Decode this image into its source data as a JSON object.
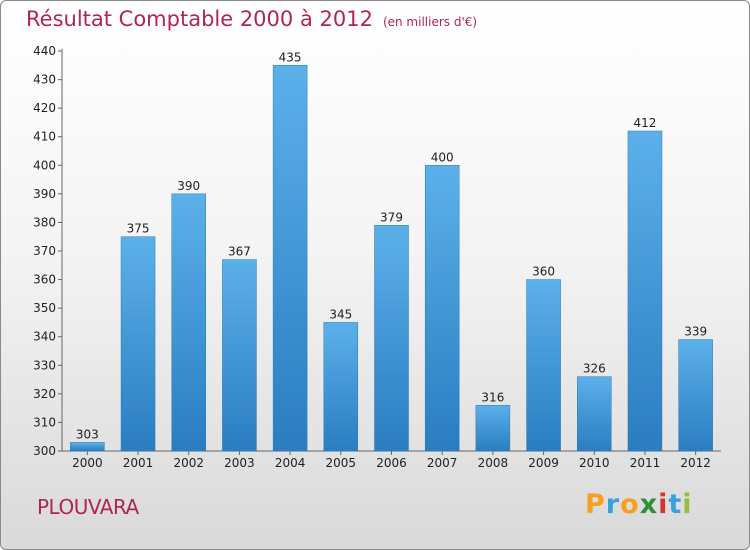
{
  "title": "Résultat Comptable 2000 à 2012",
  "subtitle": "(en milliers d'€)",
  "commune": "PLOUVARA",
  "brand": {
    "letters": [
      "P",
      "r",
      "o",
      "x",
      "i",
      "t",
      "i"
    ],
    "colors": [
      "#f7a01e",
      "#3aa0dc",
      "#f7a01e",
      "#2f8f3a",
      "#d9342b",
      "#3aa0dc",
      "#8fc13f"
    ]
  },
  "colors": {
    "bar": "#3d95d5",
    "bar_light": "#5eb2ea",
    "title": "#b0245a"
  },
  "chart_data": {
    "type": "bar",
    "categories": [
      "2000",
      "2001",
      "2002",
      "2003",
      "2004",
      "2005",
      "2006",
      "2007",
      "2008",
      "2009",
      "2010",
      "2011",
      "2012"
    ],
    "values": [
      303,
      375,
      390,
      367,
      435,
      345,
      379,
      400,
      316,
      360,
      326,
      412,
      339
    ],
    "ylim": [
      300,
      440
    ],
    "yticks": [
      300,
      310,
      320,
      330,
      340,
      350,
      360,
      370,
      380,
      390,
      400,
      410,
      420,
      430,
      440
    ],
    "grid": false,
    "legend": "none",
    "title": "Résultat Comptable 2000 à 2012",
    "xlabel": "",
    "ylabel": ""
  }
}
